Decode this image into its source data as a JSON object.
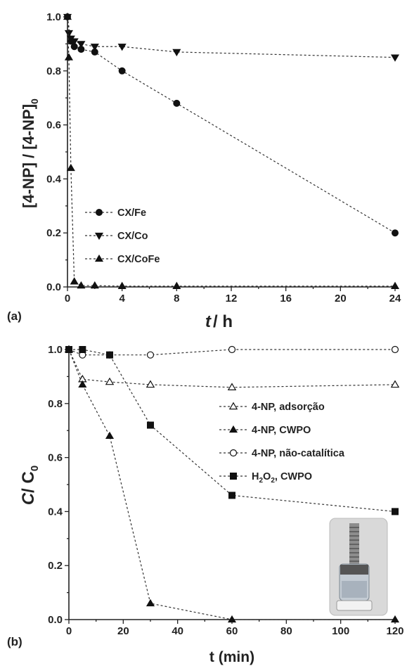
{
  "chart_data": [
    {
      "panel": "(a)",
      "type": "line",
      "ylabel": "[4-NP] / [4-NP]",
      "ylabel_sub": "0",
      "xlabel": "t",
      "xlabel_unit": "/ h",
      "xlim": [
        0,
        24
      ],
      "ylim": [
        0,
        1.0
      ],
      "x_ticks": [
        "0",
        "4",
        "8",
        "12",
        "16",
        "20",
        "24"
      ],
      "y_ticks": [
        "0.0",
        "0.2",
        "0.4",
        "0.6",
        "0.8",
        "1.0"
      ],
      "legend_position": "bottom-left",
      "series": [
        {
          "name": "CX/Fe",
          "marker": "circle-filled",
          "x": [
            0,
            0.25,
            0.5,
            1,
            2,
            4,
            8,
            24
          ],
          "y": [
            1.0,
            0.91,
            0.89,
            0.88,
            0.87,
            0.8,
            0.68,
            0.2
          ]
        },
        {
          "name": "CX/Co",
          "marker": "triangle-down-filled",
          "x": [
            0,
            0.1,
            0.25,
            0.5,
            1,
            2,
            4,
            8,
            24
          ],
          "y": [
            1.0,
            0.94,
            0.92,
            0.91,
            0.9,
            0.89,
            0.89,
            0.87,
            0.85
          ]
        },
        {
          "name": "CX/CoFe",
          "marker": "triangle-up-filled",
          "x": [
            0,
            0.1,
            0.25,
            0.5,
            1,
            2,
            4,
            8,
            24
          ],
          "y": [
            1.0,
            0.85,
            0.44,
            0.02,
            0.005,
            0.005,
            0.003,
            0.003,
            0.003
          ]
        }
      ]
    },
    {
      "panel": "(b)",
      "type": "line",
      "ylabel": "C",
      "ylabel_mid": "/ C",
      "ylabel_sub": "0",
      "xlabel": "t (min)",
      "xlim": [
        0,
        120
      ],
      "ylim": [
        0,
        1.0
      ],
      "x_ticks": [
        "0",
        "20",
        "40",
        "60",
        "80",
        "100",
        "120"
      ],
      "y_ticks": [
        "0.0",
        "0.2",
        "0.4",
        "0.6",
        "0.8",
        "1.0"
      ],
      "legend_position": "right",
      "series": [
        {
          "name": "4-NP, adsorção",
          "marker": "triangle-up-open",
          "x": [
            0,
            5,
            15,
            30,
            60,
            120
          ],
          "y": [
            1.0,
            0.89,
            0.88,
            0.87,
            0.86,
            0.87
          ]
        },
        {
          "name": "4-NP, CWPO",
          "marker": "triangle-up-filled",
          "x": [
            0,
            5,
            15,
            30,
            60,
            120
          ],
          "y": [
            1.0,
            0.87,
            0.68,
            0.06,
            0.0,
            0.0
          ]
        },
        {
          "name": "4-NP, não-catalítica",
          "marker": "circle-open",
          "x": [
            0,
            5,
            15,
            30,
            60,
            120
          ],
          "y": [
            1.0,
            0.98,
            0.98,
            0.98,
            1.0,
            1.0
          ]
        },
        {
          "name": "H2O2, CWPO",
          "name_parts": [
            "H",
            "2",
            "O",
            "2",
            ", CWPO"
          ],
          "marker": "square-filled",
          "x": [
            0,
            5,
            15,
            30,
            60,
            120
          ],
          "y": [
            1.0,
            1.0,
            0.98,
            0.72,
            0.46,
            0.4
          ]
        }
      ],
      "inset": "photo of reactor vial"
    }
  ]
}
